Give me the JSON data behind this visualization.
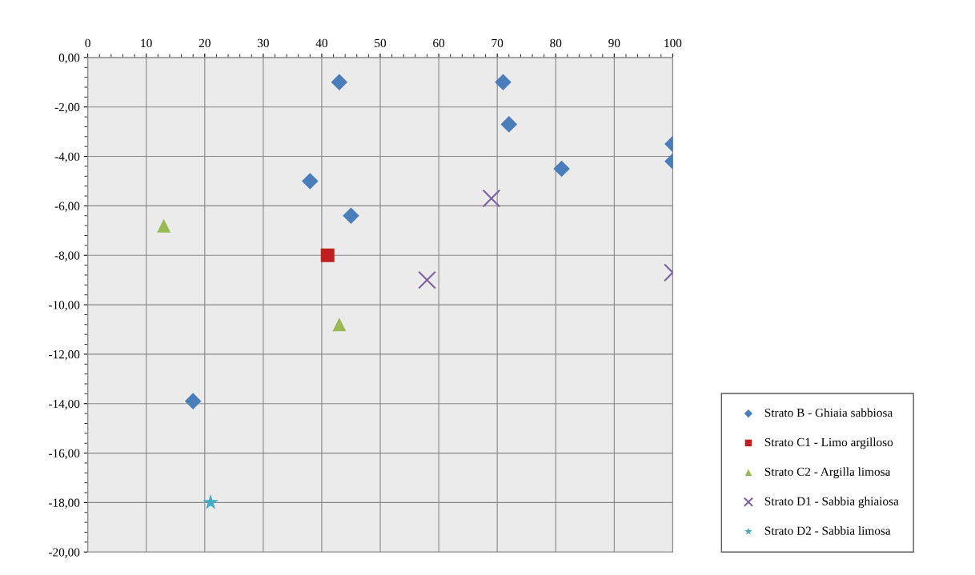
{
  "chart_data": {
    "type": "scatter",
    "xlim": [
      0,
      100
    ],
    "ylim": [
      -20,
      0
    ],
    "xticks": [
      0,
      10,
      20,
      30,
      40,
      50,
      60,
      70,
      80,
      90,
      100
    ],
    "yticks": [
      {
        "value": 0,
        "label": "0,00"
      },
      {
        "value": -2,
        "label": "-2,00"
      },
      {
        "value": -4,
        "label": "-4,00"
      },
      {
        "value": -6,
        "label": "-6,00"
      },
      {
        "value": -8,
        "label": "-8,00"
      },
      {
        "value": -10,
        "label": "-10,00"
      },
      {
        "value": -12,
        "label": "-12,00"
      },
      {
        "value": -14,
        "label": "-14,00"
      },
      {
        "value": -16,
        "label": "-16,00"
      },
      {
        "value": -18,
        "label": "-18,00"
      },
      {
        "value": -20,
        "label": "-20,00"
      }
    ],
    "grid": true,
    "legend": "bottom right",
    "series": [
      {
        "name": "Strato B - Ghiaia sabbiosa",
        "color": "#4a7ebb",
        "marker": "diamond",
        "x": [
          43,
          71,
          72,
          100,
          100,
          81,
          38,
          45,
          18
        ],
        "values": [
          -1,
          -1,
          -2.7,
          -3.5,
          -4.2,
          -4.5,
          -5,
          -6.4,
          -13.9
        ]
      },
      {
        "name": "Strato C1 - Limo argilloso",
        "color": "#be2020",
        "marker": "square",
        "x": [
          41
        ],
        "values": [
          -8
        ]
      },
      {
        "name": "Strato C2 - Argilla limosa",
        "color": "#98b954",
        "marker": "triangle",
        "x": [
          13,
          43
        ],
        "values": [
          -6.8,
          -10.8
        ]
      },
      {
        "name": "Strato D1 - Sabbia ghiaiosa",
        "color": "#7d60a0",
        "marker": "cross",
        "x": [
          69,
          58,
          100
        ],
        "values": [
          -5.7,
          -9,
          -8.7
        ]
      },
      {
        "name": "Strato D2 - Sabbia limosa",
        "color": "#46aac5",
        "marker": "star",
        "x": [
          21
        ],
        "values": [
          -18
        ]
      }
    ]
  }
}
